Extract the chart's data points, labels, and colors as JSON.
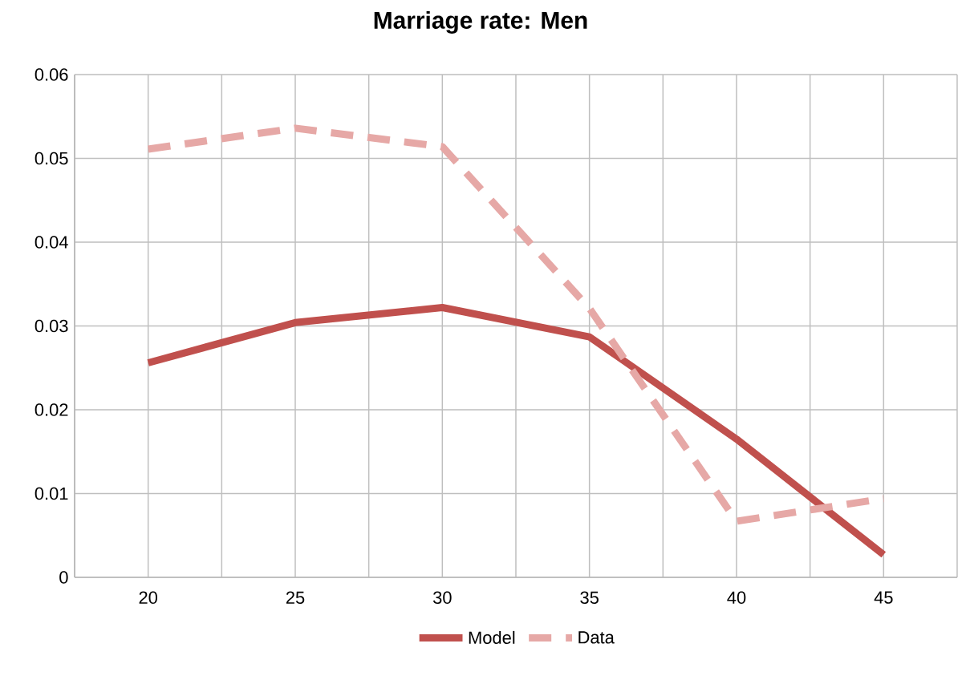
{
  "chart_data": {
    "type": "line",
    "title": "Marriage rate: Men",
    "x": [
      20,
      25,
      30,
      35,
      40,
      45
    ],
    "series": [
      {
        "name": "Model",
        "color": "#c0504d",
        "line_style": "solid",
        "values": [
          0.0256,
          0.0304,
          0.0322,
          0.0287,
          0.0165,
          0.0027
        ]
      },
      {
        "name": "Data",
        "color": "#e6a8a6",
        "line_style": "dashed",
        "values": [
          0.0511,
          0.0536,
          0.0514,
          0.0321,
          0.0067,
          0.0094
        ]
      }
    ],
    "xlim": [
      17.5,
      47.5
    ],
    "xticks": [
      {
        "value": 17.5,
        "label": null
      },
      20,
      {
        "value": 22.5,
        "label": null
      },
      25,
      {
        "value": 27.5,
        "label": null
      },
      30,
      {
        "value": 32.5,
        "label": null
      },
      35,
      {
        "value": 37.5,
        "label": null
      },
      40,
      {
        "value": 42.5,
        "label": null
      },
      45,
      {
        "value": 47.5,
        "label": null
      }
    ],
    "ylim": [
      0,
      0.06
    ],
    "yticks": [
      0,
      0.01,
      0.02,
      0.03,
      0.04,
      0.05,
      0.06
    ],
    "grid": true,
    "legend": "bottom"
  }
}
